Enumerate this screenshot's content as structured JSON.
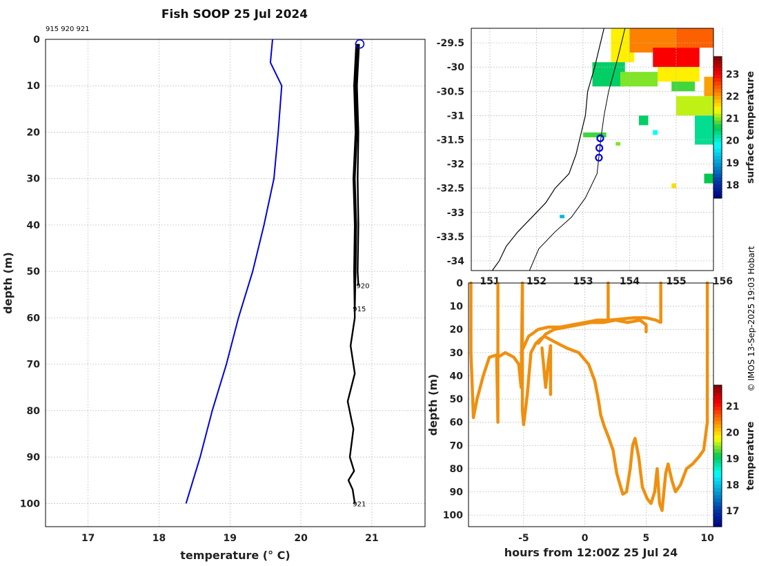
{
  "title": "Fish SOOP 25 Jul 2024",
  "credit": "© IMOS 13-Sep-2025 19:03 Hobart",
  "chart_data": [
    {
      "type": "line",
      "name": "temperature-profile",
      "xlabel": "temperature (° C)",
      "ylabel": "depth (m)",
      "xlim": [
        16.4,
        21.75
      ],
      "ylim": [
        0,
        105
      ],
      "xticks": [
        "17",
        "18",
        "19",
        "20",
        "21"
      ],
      "yticks": [
        "0",
        "10",
        "20",
        "30",
        "40",
        "50",
        "60",
        "70",
        "80",
        "90",
        "100"
      ],
      "top_annotation": "915 920 921",
      "series": [
        {
          "name": "climatology",
          "color": "#0000dd",
          "points": [
            [
              19.6,
              0
            ],
            [
              19.57,
              5
            ],
            [
              19.73,
              10
            ],
            [
              19.68,
              20
            ],
            [
              19.62,
              30
            ],
            [
              19.48,
              40
            ],
            [
              19.32,
              50
            ],
            [
              19.12,
              60
            ],
            [
              18.95,
              70
            ],
            [
              18.75,
              80
            ],
            [
              18.58,
              90
            ],
            [
              18.38,
              100
            ]
          ]
        },
        {
          "name": "profile 920",
          "color": "#000000",
          "label": "920",
          "points": [
            [
              20.82,
              1
            ],
            [
              20.79,
              10
            ],
            [
              20.81,
              20
            ],
            [
              20.8,
              30
            ],
            [
              20.81,
              40
            ],
            [
              20.8,
              50
            ],
            [
              20.81,
              53
            ]
          ]
        },
        {
          "name": "profile 915",
          "color": "#000000",
          "label": "915",
          "points": [
            [
              20.8,
              1
            ],
            [
              20.77,
              10
            ],
            [
              20.79,
              20
            ],
            [
              20.76,
              30
            ],
            [
              20.78,
              40
            ],
            [
              20.77,
              50
            ],
            [
              20.76,
              58
            ]
          ]
        },
        {
          "name": "profile 921",
          "color": "#000000",
          "label": "921",
          "points": [
            [
              20.78,
              1
            ],
            [
              20.75,
              10
            ],
            [
              20.77,
              20
            ],
            [
              20.74,
              30
            ],
            [
              20.76,
              40
            ],
            [
              20.75,
              50
            ],
            [
              20.76,
              60
            ],
            [
              20.7,
              66
            ],
            [
              20.76,
              72
            ],
            [
              20.66,
              78
            ],
            [
              20.74,
              84
            ],
            [
              20.69,
              90
            ],
            [
              20.75,
              93
            ],
            [
              20.67,
              95
            ],
            [
              20.73,
              97
            ],
            [
              20.76,
              100
            ]
          ]
        }
      ],
      "markers": [
        {
          "x": 20.83,
          "y": 1,
          "shape": "circle",
          "color": "#0000dd"
        }
      ]
    },
    {
      "type": "heatmap",
      "name": "surface-temperature-map",
      "xlim": [
        150.6,
        155.8
      ],
      "ylim": [
        -34.2,
        -29.2
      ],
      "xticks": [
        "151",
        "152",
        "153",
        "154",
        "155",
        "156"
      ],
      "yticks": [
        "-29.5",
        "-30",
        "-30.5",
        "-31",
        "-31.5",
        "-32",
        "-32.5",
        "-33",
        "-33.5",
        "-34"
      ],
      "colorbar_label": "surface temperature",
      "colorbar_ticks": [
        "18",
        "19",
        "20",
        "21",
        "22",
        "23"
      ],
      "colorbar_range": [
        17.4,
        23.8
      ],
      "stations": [
        [
          153.37,
          -31.47
        ],
        [
          153.35,
          -31.67
        ],
        [
          153.34,
          -31.87
        ]
      ],
      "sst_patches": [
        {
          "lon": [
            153.6,
            154.1
          ],
          "lat": [
            -29.2,
            -29.9
          ],
          "value": 21.5
        },
        {
          "lon": [
            154.0,
            155.0
          ],
          "lat": [
            -29.2,
            -29.7
          ],
          "value": 22.2
        },
        {
          "lon": [
            154.5,
            155.5
          ],
          "lat": [
            -29.6,
            -30.0
          ],
          "value": 23.0
        },
        {
          "lon": [
            155.0,
            155.8
          ],
          "lat": [
            -29.2,
            -29.6
          ],
          "value": 22.4
        },
        {
          "lon": [
            153.2,
            153.9
          ],
          "lat": [
            -29.9,
            -30.4
          ],
          "value": 20.5
        },
        {
          "lon": [
            153.8,
            154.6
          ],
          "lat": [
            -30.1,
            -30.4
          ],
          "value": 21.0
        },
        {
          "lon": [
            154.6,
            155.5
          ],
          "lat": [
            -30.0,
            -30.3
          ],
          "value": 21.5
        },
        {
          "lon": [
            154.9,
            155.4
          ],
          "lat": [
            -30.3,
            -30.5
          ],
          "value": 20.8
        },
        {
          "lon": [
            155.0,
            155.8
          ],
          "lat": [
            -30.6,
            -31.0
          ],
          "value": 21.2
        },
        {
          "lon": [
            155.6,
            155.8
          ],
          "lat": [
            -30.2,
            -30.6
          ],
          "value": 22.0
        },
        {
          "lon": [
            155.4,
            155.8
          ],
          "lat": [
            -31.0,
            -31.6
          ],
          "value": 20.3
        },
        {
          "lon": [
            154.2,
            154.4
          ],
          "lat": [
            -31.0,
            -31.2
          ],
          "value": 20.5
        },
        {
          "lon": [
            153.0,
            153.5
          ],
          "lat": [
            -31.35,
            -31.45
          ],
          "value": 20.8
        },
        {
          "lon": [
            155.6,
            155.8
          ],
          "lat": [
            -32.2,
            -32.4
          ],
          "value": 20.6
        },
        {
          "lon": [
            153.7,
            153.8
          ],
          "lat": [
            -31.55,
            -31.62
          ],
          "value": 21.0
        },
        {
          "lon": [
            154.5,
            154.6
          ],
          "lat": [
            -31.3,
            -31.4
          ],
          "value": 19.8
        },
        {
          "lon": [
            154.9,
            155.0
          ],
          "lat": [
            -32.4,
            -32.5
          ],
          "value": 21.6
        },
        {
          "lon": [
            152.5,
            152.6
          ],
          "lat": [
            -33.05,
            -33.12
          ],
          "value": 19.2
        }
      ]
    },
    {
      "type": "scatter",
      "name": "depth-time-section",
      "xlabel": "hours from 12:00Z 25 Jul 24",
      "ylabel": "depth (m)",
      "xlim": [
        -9.5,
        10.5
      ],
      "ylim": [
        0,
        105
      ],
      "xticks": [
        "-5",
        "0",
        "5",
        "10"
      ],
      "yticks": [
        "0",
        "10",
        "20",
        "30",
        "40",
        "50",
        "60",
        "70",
        "80",
        "90",
        "100"
      ],
      "colorbar_label": "temperature",
      "colorbar_ticks": [
        "17",
        "18",
        "19",
        "20",
        "21"
      ],
      "colorbar_range": [
        16.4,
        21.8
      ],
      "point_color": "#ef9010",
      "tracks": [
        [
          [
            -9.3,
            0
          ],
          [
            -9.3,
            30
          ],
          [
            -9.1,
            58
          ],
          [
            -8.8,
            50
          ],
          [
            -8.3,
            40
          ],
          [
            -7.8,
            32
          ],
          [
            -7.2,
            31
          ],
          [
            -7.1,
            60
          ],
          [
            -7.1,
            0
          ]
        ],
        [
          [
            -7.1,
            32
          ],
          [
            -6.5,
            30
          ],
          [
            -5.8,
            32
          ],
          [
            -5.4,
            35
          ],
          [
            -5.2,
            45
          ],
          [
            -5.1,
            0
          ],
          [
            -5.1,
            55
          ],
          [
            -5.0,
            61
          ],
          [
            -4.7,
            48
          ],
          [
            -4.4,
            30
          ],
          [
            -4.0,
            26
          ],
          [
            -3.6,
            24
          ],
          [
            -3.3,
            23
          ],
          [
            -2.6,
            25
          ],
          [
            -1.5,
            28
          ],
          [
            -0.5,
            30
          ],
          [
            0.3,
            35
          ],
          [
            0.8,
            42
          ],
          [
            1.1,
            50
          ],
          [
            1.3,
            57
          ],
          [
            1.6,
            62
          ],
          [
            1.9,
            66
          ],
          [
            2.3,
            72
          ],
          [
            2.6,
            82
          ],
          [
            3.1,
            91
          ],
          [
            3.4,
            90
          ],
          [
            3.7,
            80
          ],
          [
            3.9,
            70
          ],
          [
            4.1,
            67
          ],
          [
            4.4,
            75
          ],
          [
            4.7,
            88
          ],
          [
            5.1,
            93
          ],
          [
            5.4,
            95
          ],
          [
            5.7,
            90
          ],
          [
            5.9,
            80
          ],
          [
            6.1,
            95
          ],
          [
            6.3,
            98
          ],
          [
            6.6,
            82
          ],
          [
            6.8,
            78
          ],
          [
            7.1,
            85
          ],
          [
            7.4,
            90
          ],
          [
            7.8,
            87
          ],
          [
            8.3,
            80
          ],
          [
            8.8,
            78
          ],
          [
            9.3,
            75
          ],
          [
            9.7,
            72
          ],
          [
            10.0,
            60
          ],
          [
            10.0,
            0
          ]
        ],
        [
          [
            -5.2,
            30
          ],
          [
            -4.6,
            23
          ],
          [
            -3.8,
            20
          ],
          [
            -3.0,
            19
          ],
          [
            -2.0,
            19
          ],
          [
            -1.0,
            18
          ],
          [
            0.0,
            17
          ],
          [
            1.0,
            16
          ],
          [
            2.0,
            16
          ],
          [
            3.0,
            15.5
          ],
          [
            4.0,
            15
          ],
          [
            5.0,
            15
          ],
          [
            5.8,
            16
          ],
          [
            6.2,
            17
          ],
          [
            6.2,
            0
          ]
        ],
        [
          [
            -3.8,
            26
          ],
          [
            -3.2,
            22
          ],
          [
            -2.5,
            20
          ],
          [
            -1.5,
            19
          ],
          [
            -0.5,
            18
          ],
          [
            0.5,
            17
          ],
          [
            1.5,
            17
          ],
          [
            2.5,
            16
          ],
          [
            3.5,
            17
          ],
          [
            4.5,
            16
          ],
          [
            5.0,
            18
          ],
          [
            5.0,
            21
          ]
        ],
        [
          [
            -3.5,
            28
          ],
          [
            -3.2,
            45
          ],
          [
            -3.0,
            35
          ],
          [
            -2.8,
            27
          ],
          [
            -2.8,
            48
          ]
        ],
        [
          [
            1.9,
            0
          ],
          [
            1.9,
            16
          ]
        ]
      ]
    }
  ]
}
